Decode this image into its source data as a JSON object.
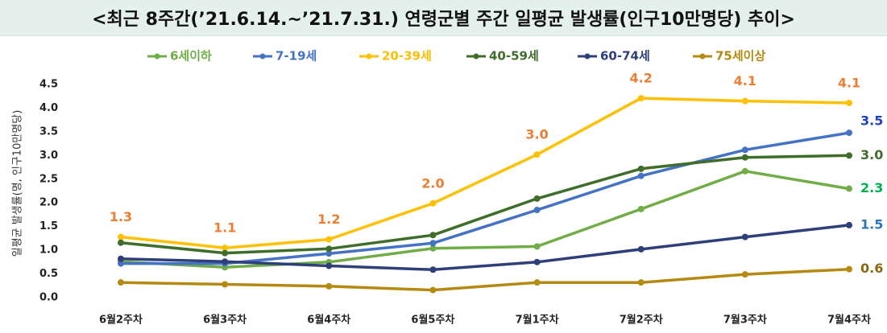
{
  "chart_data": {
    "type": "line",
    "title": "<최근 8주간(’21.6.14.~’21.7.31.) 연령군별 주간 일평균 발생률(인구10만명당) 추이>",
    "xlabel": "",
    "ylabel": "일평균 발생률(명, 인구10만명당)",
    "ylim": [
      0,
      4.5
    ],
    "yticks": [
      "0.0",
      "0.5",
      "1.0",
      "1.5",
      "2.0",
      "2.5",
      "3.0",
      "3.5",
      "4.0",
      "4.5"
    ],
    "grid": false,
    "legend_position": "top",
    "categories": [
      "6월2주차",
      "6월3주차",
      "6월4주차",
      "6월5주차",
      "7월1주차",
      "7월2주차",
      "7월3주차",
      "7월4주차"
    ],
    "series": [
      {
        "name": "6세이하",
        "color": "#70ad47",
        "values": [
          0.76,
          0.64,
          0.75,
          1.04,
          1.08,
          1.87,
          2.67,
          2.3
        ]
      },
      {
        "name": "7-19세",
        "color": "#4472c4",
        "values": [
          0.72,
          0.72,
          0.93,
          1.15,
          1.85,
          2.57,
          3.12,
          3.48
        ]
      },
      {
        "name": "20-39세",
        "color": "#ffc000",
        "values": [
          1.28,
          1.05,
          1.23,
          1.99,
          3.02,
          4.21,
          4.15,
          4.11
        ]
      },
      {
        "name": "40-59세",
        "color": "#3f6e2a",
        "values": [
          1.16,
          0.94,
          1.03,
          1.32,
          2.09,
          2.72,
          2.96,
          3.0
        ]
      },
      {
        "name": "60-74세",
        "color": "#2e3f7a",
        "values": [
          0.82,
          0.76,
          0.67,
          0.59,
          0.75,
          1.02,
          1.28,
          1.53
        ]
      },
      {
        "name": "75세이상",
        "color": "#b58a10",
        "values": [
          0.32,
          0.28,
          0.24,
          0.16,
          0.32,
          0.32,
          0.49,
          0.6
        ]
      }
    ],
    "annotations": [
      {
        "series": "20-39세",
        "index": 0,
        "text": "1.3",
        "color": "#ed7d31"
      },
      {
        "series": "20-39세",
        "index": 1,
        "text": "1.1",
        "color": "#ed7d31"
      },
      {
        "series": "20-39세",
        "index": 2,
        "text": "1.2",
        "color": "#ed7d31"
      },
      {
        "series": "20-39세",
        "index": 3,
        "text": "2.0",
        "color": "#ed7d31"
      },
      {
        "series": "20-39세",
        "index": 4,
        "text": "3.0",
        "color": "#ed7d31"
      },
      {
        "series": "20-39세",
        "index": 5,
        "text": "4.2",
        "color": "#ed7d31"
      },
      {
        "series": "20-39세",
        "index": 6,
        "text": "4.1",
        "color": "#ed7d31"
      },
      {
        "series": "20-39세",
        "index": 7,
        "text": "4.1",
        "color": "#ed7d31"
      },
      {
        "series": "7-19세",
        "index": 7,
        "text": "3.5",
        "color": "#1f3fbf"
      },
      {
        "series": "40-59세",
        "index": 7,
        "text": "3.0",
        "color": "#3f6e2a"
      },
      {
        "series": "6세이하",
        "index": 7,
        "text": "2.3",
        "color": "#00b050"
      },
      {
        "series": "60-74세",
        "index": 7,
        "text": "1.5",
        "color": "#2e75b6"
      },
      {
        "series": "75세이상",
        "index": 7,
        "text": "0.6",
        "color": "#8a6a10"
      }
    ]
  }
}
